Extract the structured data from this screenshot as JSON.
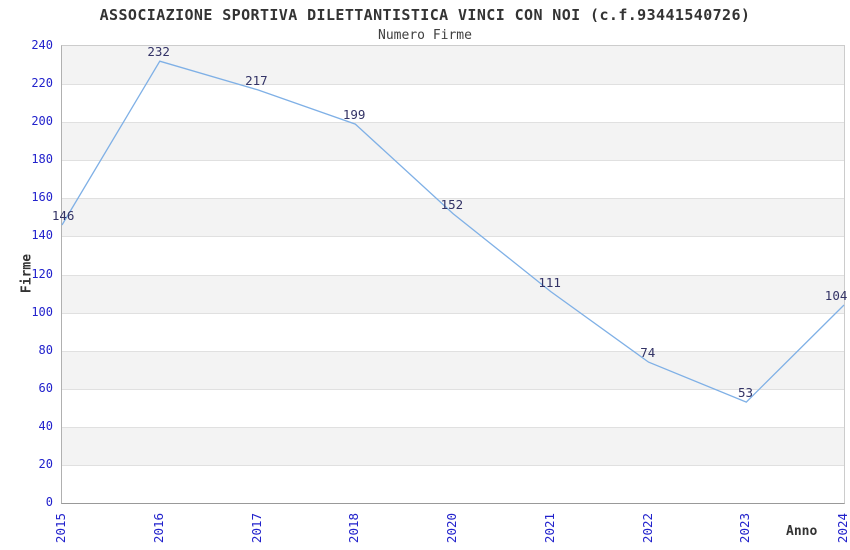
{
  "chart_data": {
    "type": "line",
    "title": "ASSOCIAZIONE SPORTIVA DILETTANTISTICA VINCI CON NOI (c.f.93441540726)",
    "subtitle": "Numero Firme",
    "xlabel": "Anno",
    "ylabel": "Firme",
    "categories": [
      "2015",
      "2016",
      "2017",
      "2018",
      "2020",
      "2021",
      "2022",
      "2023",
      "2024"
    ],
    "values": [
      146,
      232,
      217,
      199,
      152,
      111,
      74,
      53,
      104
    ],
    "ylim": [
      0,
      240
    ],
    "ytick_step": 20,
    "grid": "horizontal-alternating-bands",
    "legend": "none",
    "colors": {
      "line": "#7fb0e6",
      "point_label": "#333366",
      "tick_label": "#2222cc",
      "band_gray": "#f3f3f3",
      "gridline": "#e0e0e0",
      "title_text": "#333333"
    }
  }
}
